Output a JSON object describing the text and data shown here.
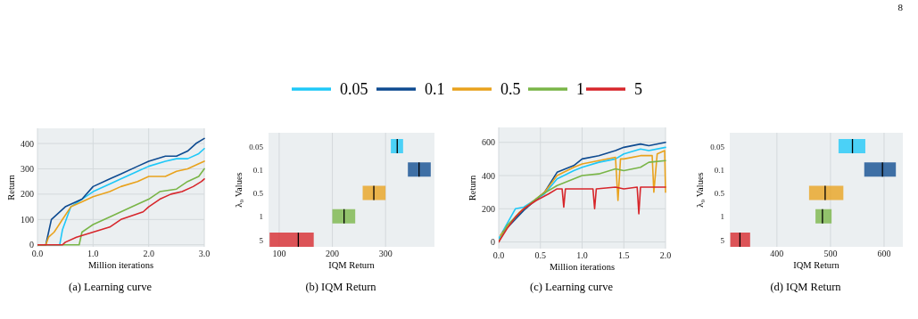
{
  "chart_data": [
    {
      "type": "line",
      "title": "(a) Learning curve",
      "xlabel": "Million iterations",
      "ylabel": "Return",
      "xlim": [
        0,
        3
      ],
      "ylim": [
        -8,
        460
      ],
      "xticks": [
        {
          "value": 0,
          "label": "0.0"
        },
        {
          "value": 1,
          "label": "1.0"
        },
        {
          "value": 2,
          "label": "2.0"
        },
        {
          "value": 3,
          "label": "3.0"
        }
      ],
      "yticks": [
        0,
        100,
        200,
        300,
        400
      ],
      "grid": true,
      "legend": "top",
      "line_style": "solid",
      "annotations": [
        "8"
      ],
      "series": [
        {
          "name": "0.05",
          "color": "#1ec8f8",
          "x": [
            0,
            0.4,
            0.45,
            0.6,
            0.8,
            1.0,
            1.3,
            1.5,
            1.8,
            2.0,
            2.3,
            2.5,
            2.7,
            2.9,
            3.0
          ],
          "values": [
            0,
            0,
            60,
            150,
            180,
            210,
            240,
            260,
            290,
            310,
            330,
            340,
            340,
            360,
            380
          ]
        },
        {
          "name": "0.1",
          "color": "#0d4a90",
          "x": [
            0,
            0.15,
            0.25,
            0.5,
            0.8,
            1.0,
            1.3,
            1.5,
            1.8,
            2.0,
            2.3,
            2.5,
            2.7,
            2.85,
            3.0
          ],
          "values": [
            0,
            0,
            100,
            150,
            180,
            230,
            260,
            280,
            310,
            330,
            350,
            350,
            370,
            400,
            420
          ]
        },
        {
          "name": "0.5",
          "color": "#e9a21c",
          "x": [
            0,
            0.15,
            0.2,
            0.3,
            0.45,
            0.6,
            0.8,
            1.0,
            1.3,
            1.5,
            1.8,
            2.0,
            2.3,
            2.5,
            2.7,
            2.9,
            3.0
          ],
          "values": [
            0,
            0,
            30,
            50,
            100,
            150,
            170,
            190,
            210,
            230,
            250,
            270,
            270,
            290,
            300,
            320,
            330
          ]
        },
        {
          "name": "1",
          "color": "#79b547",
          "x": [
            0,
            0.75,
            0.8,
            1.0,
            1.3,
            1.5,
            1.7,
            2.0,
            2.2,
            2.5,
            2.7,
            2.9,
            3.0
          ],
          "values": [
            0,
            0,
            50,
            80,
            110,
            130,
            150,
            180,
            210,
            220,
            250,
            270,
            300
          ]
        },
        {
          "name": "5",
          "color": "#d7262b",
          "x": [
            0,
            0.45,
            0.5,
            0.7,
            1.0,
            1.3,
            1.5,
            1.9,
            2.0,
            2.2,
            2.4,
            2.6,
            2.8,
            2.95,
            3.0
          ],
          "values": [
            0,
            0,
            10,
            30,
            50,
            70,
            100,
            130,
            150,
            180,
            200,
            210,
            230,
            250,
            260
          ]
        }
      ]
    },
    {
      "type": "box",
      "orientation": "horizontal",
      "title": "(b) IQM Return",
      "xlabel": "IQM Return",
      "ylabel": "λ₀ Values",
      "categories": [
        "0.05",
        "0.1",
        "0.5",
        "1",
        "5"
      ],
      "xlim": [
        80,
        392
      ],
      "xticks": [
        100,
        200,
        300
      ],
      "grid": "x",
      "colors": [
        "#1ec8f8",
        "#0d4a90",
        "#e9a21c",
        "#79b547",
        "#d7262b"
      ],
      "boxes": [
        {
          "low": 310,
          "q1": 310,
          "median": 322,
          "q3": 333,
          "high": 333
        },
        {
          "low": 342,
          "q1": 342,
          "median": 363,
          "q3": 385,
          "high": 385
        },
        {
          "low": 257,
          "q1": 257,
          "median": 278,
          "q3": 300,
          "high": 300
        },
        {
          "low": 200,
          "q1": 200,
          "median": 222,
          "q3": 243,
          "high": 243
        },
        {
          "low": 82,
          "q1": 82,
          "median": 136,
          "q3": 165,
          "high": 165
        }
      ]
    },
    {
      "type": "line",
      "title": "(c) Learning curve",
      "xlabel": "Million iterations",
      "ylabel": "Return",
      "xlim": [
        0,
        2
      ],
      "ylim": [
        -40,
        690
      ],
      "xticks": [
        {
          "value": 0,
          "label": "0.0"
        },
        {
          "value": 0.5,
          "label": "0.5"
        },
        {
          "value": 1,
          "label": "1.0"
        },
        {
          "value": 1.5,
          "label": "1.5"
        },
        {
          "value": 2,
          "label": "2.0"
        }
      ],
      "yticks": [
        0,
        200,
        400,
        600
      ],
      "grid": true,
      "line_style": "solid",
      "series": [
        {
          "color": "#1ec8f8",
          "x": [
            0,
            0.2,
            0.3,
            0.55,
            0.7,
            0.9,
            1.0,
            1.2,
            1.4,
            1.5,
            1.7,
            1.8,
            2.0
          ],
          "values": [
            20,
            200,
            210,
            290,
            380,
            430,
            450,
            480,
            500,
            530,
            560,
            550,
            570
          ]
        },
        {
          "color": "#0d4a90",
          "x": [
            0.05,
            0.15,
            0.3,
            0.55,
            0.7,
            0.9,
            1.0,
            1.2,
            1.4,
            1.5,
            1.7,
            1.8,
            2.0
          ],
          "values": [
            60,
            110,
            190,
            300,
            420,
            460,
            500,
            520,
            550,
            570,
            590,
            580,
            600
          ]
        },
        {
          "color": "#e9a21c",
          "x": [
            0.02,
            0.25,
            0.3,
            0.55,
            0.7,
            0.9,
            1.0,
            1.2,
            1.4,
            1.43,
            1.46,
            1.5,
            1.7,
            1.84,
            1.86,
            1.9,
            1.99,
            2.0
          ],
          "values": [
            40,
            180,
            200,
            300,
            400,
            450,
            470,
            490,
            510,
            250,
            500,
            500,
            520,
            520,
            300,
            530,
            550,
            300
          ]
        },
        {
          "color": "#79b547",
          "x": [
            0,
            0.1,
            0.3,
            0.5,
            0.7,
            0.9,
            1.0,
            1.2,
            1.4,
            1.5,
            1.7,
            1.8,
            2.0
          ],
          "values": [
            0,
            100,
            200,
            280,
            340,
            380,
            400,
            410,
            440,
            430,
            450,
            480,
            490
          ]
        },
        {
          "color": "#d7262b",
          "x": [
            0,
            0.1,
            0.2,
            0.3,
            0.45,
            0.6,
            0.7,
            0.76,
            0.78,
            0.8,
            1.0,
            1.13,
            1.15,
            1.17,
            1.4,
            1.5,
            1.66,
            1.68,
            1.7,
            2.0
          ],
          "values": [
            0,
            80,
            150,
            200,
            250,
            290,
            320,
            320,
            210,
            320,
            320,
            320,
            200,
            320,
            330,
            320,
            330,
            170,
            330,
            330
          ]
        }
      ]
    },
    {
      "type": "box",
      "orientation": "horizontal",
      "title": "(d) IQM Return",
      "xlabel": "IQM Return",
      "ylabel": "λ₀ Values",
      "categories": [
        "0.05",
        "0.1",
        "0.5",
        "1",
        "5"
      ],
      "xlim": [
        312,
        635
      ],
      "xticks": [
        400,
        500,
        600
      ],
      "grid": "x",
      "colors": [
        "#1ec8f8",
        "#0d4a90",
        "#e9a21c",
        "#79b547",
        "#d7262b"
      ],
      "boxes": [
        {
          "low": 515,
          "q1": 515,
          "median": 541,
          "q3": 565,
          "high": 565
        },
        {
          "low": 563,
          "q1": 563,
          "median": 597,
          "q3": 622,
          "high": 622
        },
        {
          "low": 460,
          "q1": 460,
          "median": 490,
          "q3": 524,
          "high": 524
        },
        {
          "low": 472,
          "q1": 472,
          "median": 485,
          "q3": 502,
          "high": 502
        },
        {
          "low": 313,
          "q1": 313,
          "median": 331,
          "q3": 350,
          "high": 350
        }
      ]
    }
  ]
}
